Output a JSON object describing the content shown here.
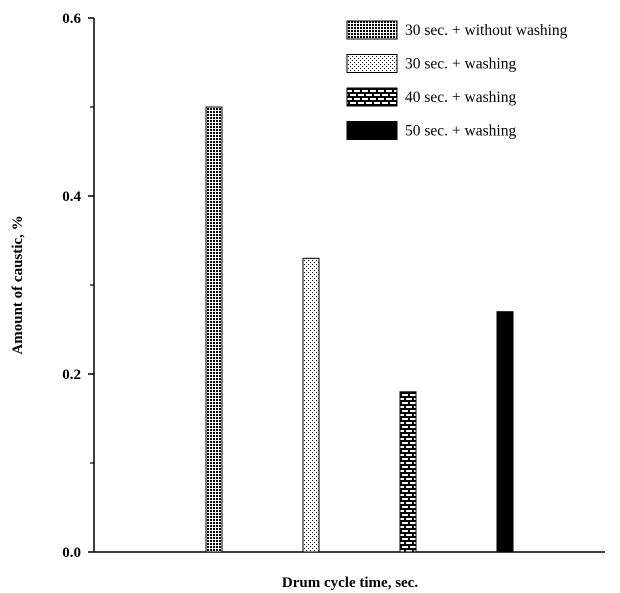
{
  "chart_data": {
    "type": "bar",
    "title": "",
    "xlabel": "Drum cycle time, sec.",
    "ylabel": "Amount of caustic, %",
    "ylim": [
      0,
      0.6
    ],
    "yticks": [
      0.0,
      0.2,
      0.4,
      0.6
    ],
    "ytick_labels": [
      "0.0",
      "0.2",
      "0.4",
      "0.6"
    ],
    "minor_ytick_step": 0.1,
    "grid": false,
    "legend_position": "top-right",
    "series": [
      {
        "name": "30 sec. + without washing",
        "value": 0.5,
        "pattern": "dense-dots",
        "color": "#000000"
      },
      {
        "name": "30 sec. + washing",
        "value": 0.33,
        "pattern": "light-dots",
        "color": "#000000"
      },
      {
        "name": "40 sec. + washing",
        "value": 0.18,
        "pattern": "brick",
        "color": "#000000"
      },
      {
        "name": "50 sec. + washing",
        "value": 0.27,
        "pattern": "solid",
        "color": "#000000"
      }
    ]
  }
}
